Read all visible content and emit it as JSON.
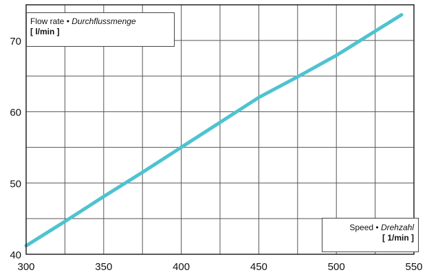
{
  "chart_data": {
    "type": "line",
    "x": [
      300,
      325,
      350,
      375,
      400,
      425,
      450,
      475,
      500,
      525,
      542
    ],
    "series": [
      {
        "values": [
          41.2,
          44.6,
          48.1,
          51.5,
          55.0,
          58.5,
          62.0,
          64.9,
          67.9,
          71.3,
          73.6
        ]
      }
    ],
    "xlim": [
      300,
      550
    ],
    "ylim": [
      40,
      75
    ],
    "xticks": [
      300,
      350,
      400,
      450,
      500,
      550
    ],
    "yticks": [
      40,
      50,
      60,
      70
    ],
    "grid": true,
    "line_color": "#4ec3d0",
    "ylabel": {
      "name": "Flow rate",
      "bullet": "•",
      "name_de": "Durchflussmenge",
      "unit": "[ l/min ]"
    },
    "xlabel": {
      "name": "Speed",
      "bullet": "•",
      "name_de": "Drehzahl",
      "unit": "[ 1/min ]"
    }
  }
}
